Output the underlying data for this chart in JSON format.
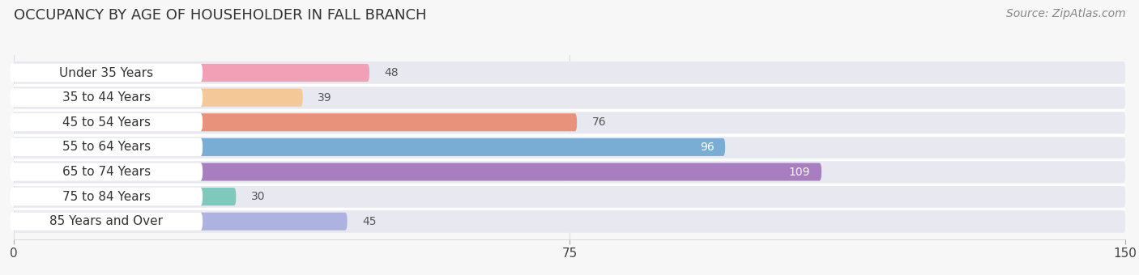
{
  "title": "OCCUPANCY BY AGE OF HOUSEHOLDER IN FALL BRANCH",
  "source": "Source: ZipAtlas.com",
  "categories": [
    "Under 35 Years",
    "35 to 44 Years",
    "45 to 54 Years",
    "55 to 64 Years",
    "65 to 74 Years",
    "75 to 84 Years",
    "85 Years and Over"
  ],
  "values": [
    48,
    39,
    76,
    96,
    109,
    30,
    45
  ],
  "bar_colors": [
    "#f2a0b5",
    "#f5c898",
    "#e8917b",
    "#7aadd4",
    "#a87ec0",
    "#7ec8bc",
    "#aeb2e0"
  ],
  "bar_bg_color": "#e8e8f0",
  "label_pill_color": "#ffffff",
  "xlim": [
    0,
    150
  ],
  "xticks": [
    0,
    75,
    150
  ],
  "title_fontsize": 13,
  "source_fontsize": 10,
  "tick_fontsize": 11,
  "label_fontsize": 11,
  "value_fontsize": 10,
  "bg_color": "#f7f7f7",
  "title_color": "#333333",
  "source_color": "#888888",
  "label_color": "#333333",
  "value_color_dark": "#555555",
  "value_color_light": "#ffffff",
  "grid_color": "#dddddd",
  "row_sep_color": "#ffffff"
}
